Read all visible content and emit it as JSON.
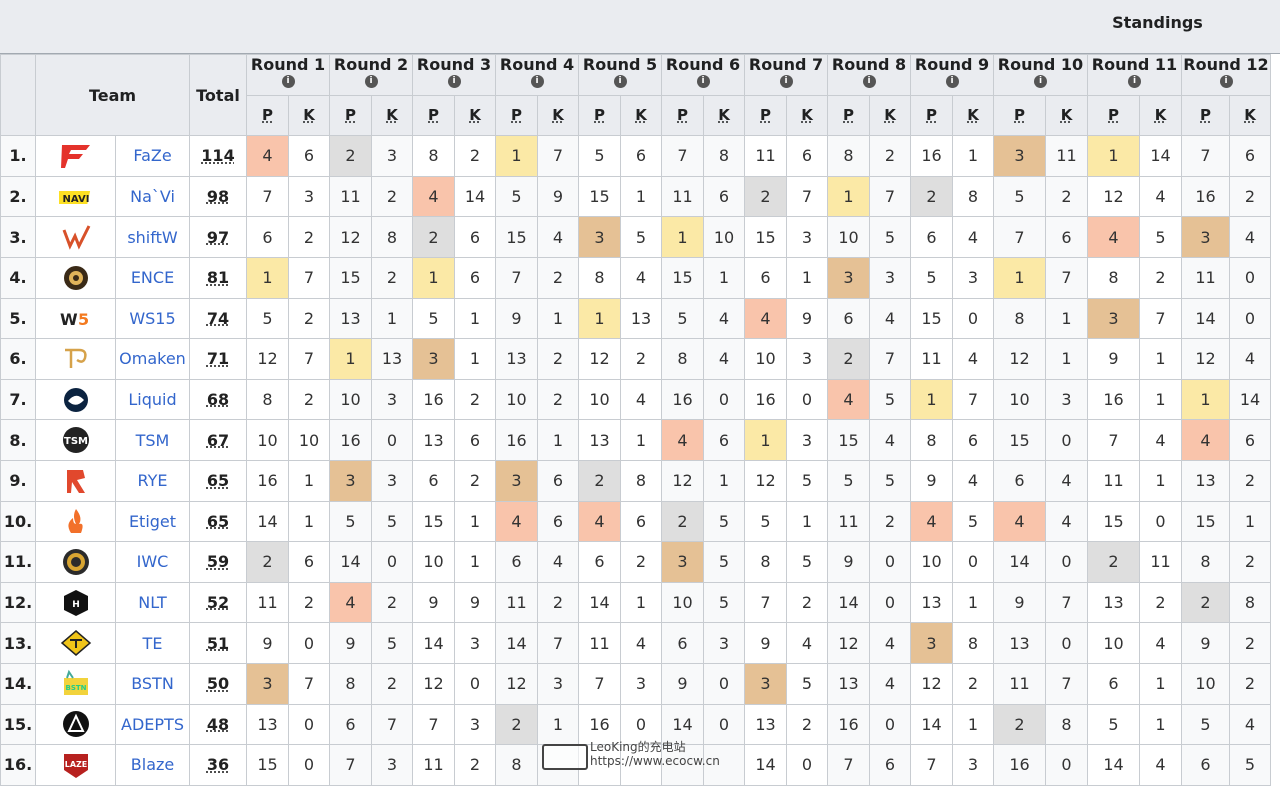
{
  "page": {
    "title": "Standings"
  },
  "headers": {
    "team": "Team",
    "total": "Total",
    "p": "P",
    "k": "K",
    "rounds": [
      "Round 1",
      "Round 2",
      "Round 3",
      "Round 4",
      "Round 5",
      "Round 6",
      "Round 7",
      "Round 8",
      "Round 9",
      "Round 10",
      "Round 11",
      "Round 12"
    ]
  },
  "colors": {
    "gold": "#fbe9a6",
    "silver": "#dedede",
    "bronze": "#e5c195",
    "fourth": "#f9c4ab",
    "link": "#3366cc"
  },
  "rows": [
    {
      "rank": "1.",
      "logo": "faze-logo",
      "team": "FaZe",
      "total": "114",
      "rounds": [
        [
          4,
          6
        ],
        [
          2,
          3
        ],
        [
          8,
          2
        ],
        [
          1,
          7
        ],
        [
          5,
          6
        ],
        [
          7,
          8
        ],
        [
          11,
          6
        ],
        [
          8,
          2
        ],
        [
          16,
          1
        ],
        [
          3,
          11
        ],
        [
          1,
          14
        ],
        [
          7,
          6
        ]
      ]
    },
    {
      "rank": "2.",
      "logo": "navi-logo",
      "team": "Na`Vi",
      "total": "98",
      "rounds": [
        [
          7,
          3
        ],
        [
          11,
          2
        ],
        [
          4,
          14
        ],
        [
          5,
          9
        ],
        [
          15,
          1
        ],
        [
          11,
          6
        ],
        [
          2,
          7
        ],
        [
          1,
          7
        ],
        [
          2,
          8
        ],
        [
          5,
          2
        ],
        [
          12,
          4
        ],
        [
          16,
          2
        ]
      ]
    },
    {
      "rank": "3.",
      "logo": "shiftw-logo",
      "team": "shiftW",
      "total": "97",
      "rounds": [
        [
          6,
          2
        ],
        [
          12,
          8
        ],
        [
          2,
          6
        ],
        [
          15,
          4
        ],
        [
          3,
          5
        ],
        [
          1,
          10
        ],
        [
          15,
          3
        ],
        [
          10,
          5
        ],
        [
          6,
          4
        ],
        [
          7,
          6
        ],
        [
          4,
          5
        ],
        [
          3,
          4
        ]
      ]
    },
    {
      "rank": "4.",
      "logo": "ence-logo",
      "team": "ENCE",
      "total": "81",
      "rounds": [
        [
          1,
          7
        ],
        [
          15,
          2
        ],
        [
          1,
          6
        ],
        [
          7,
          2
        ],
        [
          8,
          4
        ],
        [
          15,
          1
        ],
        [
          6,
          1
        ],
        [
          3,
          3
        ],
        [
          5,
          3
        ],
        [
          1,
          7
        ],
        [
          8,
          2
        ],
        [
          11,
          0
        ]
      ]
    },
    {
      "rank": "5.",
      "logo": "ws15-logo",
      "team": "WS15",
      "total": "74",
      "rounds": [
        [
          5,
          2
        ],
        [
          13,
          1
        ],
        [
          5,
          1
        ],
        [
          9,
          1
        ],
        [
          1,
          13
        ],
        [
          5,
          4
        ],
        [
          4,
          9
        ],
        [
          6,
          4
        ],
        [
          15,
          0
        ],
        [
          8,
          1
        ],
        [
          3,
          7
        ],
        [
          14,
          0
        ]
      ]
    },
    {
      "rank": "6.",
      "logo": "omaken-logo",
      "team": "Omaken",
      "total": "71",
      "rounds": [
        [
          12,
          7
        ],
        [
          1,
          13
        ],
        [
          3,
          1
        ],
        [
          13,
          2
        ],
        [
          12,
          2
        ],
        [
          8,
          4
        ],
        [
          10,
          3
        ],
        [
          2,
          7
        ],
        [
          11,
          4
        ],
        [
          12,
          1
        ],
        [
          9,
          1
        ],
        [
          12,
          4
        ]
      ]
    },
    {
      "rank": "7.",
      "logo": "liquid-logo",
      "team": "Liquid",
      "total": "68",
      "rounds": [
        [
          8,
          2
        ],
        [
          10,
          3
        ],
        [
          16,
          2
        ],
        [
          10,
          2
        ],
        [
          10,
          4
        ],
        [
          16,
          0
        ],
        [
          16,
          0
        ],
        [
          4,
          5
        ],
        [
          1,
          7
        ],
        [
          10,
          3
        ],
        [
          16,
          1
        ],
        [
          1,
          14
        ]
      ]
    },
    {
      "rank": "8.",
      "logo": "tsm-logo",
      "team": "TSM",
      "total": "67",
      "rounds": [
        [
          10,
          10
        ],
        [
          16,
          0
        ],
        [
          13,
          6
        ],
        [
          16,
          1
        ],
        [
          13,
          1
        ],
        [
          4,
          6
        ],
        [
          1,
          3
        ],
        [
          15,
          4
        ],
        [
          8,
          6
        ],
        [
          15,
          0
        ],
        [
          7,
          4
        ],
        [
          4,
          6
        ]
      ]
    },
    {
      "rank": "9.",
      "logo": "rye-logo",
      "team": "RYE",
      "total": "65",
      "rounds": [
        [
          16,
          1
        ],
        [
          3,
          3
        ],
        [
          6,
          2
        ],
        [
          3,
          6
        ],
        [
          2,
          8
        ],
        [
          12,
          1
        ],
        [
          12,
          5
        ],
        [
          5,
          5
        ],
        [
          9,
          4
        ],
        [
          6,
          4
        ],
        [
          11,
          1
        ],
        [
          13,
          2
        ]
      ]
    },
    {
      "rank": "10.",
      "logo": "etiget-logo",
      "team": "Etiget",
      "total": "65",
      "rounds": [
        [
          14,
          1
        ],
        [
          5,
          5
        ],
        [
          15,
          1
        ],
        [
          4,
          6
        ],
        [
          4,
          6
        ],
        [
          2,
          5
        ],
        [
          5,
          1
        ],
        [
          11,
          2
        ],
        [
          4,
          5
        ],
        [
          4,
          4
        ],
        [
          15,
          0
        ],
        [
          15,
          1
        ]
      ]
    },
    {
      "rank": "11.",
      "logo": "iwc-logo",
      "team": "IWC",
      "total": "59",
      "rounds": [
        [
          2,
          6
        ],
        [
          14,
          0
        ],
        [
          10,
          1
        ],
        [
          6,
          4
        ],
        [
          6,
          2
        ],
        [
          3,
          5
        ],
        [
          8,
          5
        ],
        [
          9,
          0
        ],
        [
          10,
          0
        ],
        [
          14,
          0
        ],
        [
          2,
          11
        ],
        [
          8,
          2
        ]
      ]
    },
    {
      "rank": "12.",
      "logo": "nlt-logo",
      "team": "NLT",
      "total": "52",
      "rounds": [
        [
          11,
          2
        ],
        [
          4,
          2
        ],
        [
          9,
          9
        ],
        [
          11,
          2
        ],
        [
          14,
          1
        ],
        [
          10,
          5
        ],
        [
          7,
          2
        ],
        [
          14,
          0
        ],
        [
          13,
          1
        ],
        [
          9,
          7
        ],
        [
          13,
          2
        ],
        [
          2,
          8
        ]
      ]
    },
    {
      "rank": "13.",
      "logo": "te-logo",
      "team": "TE",
      "total": "51",
      "rounds": [
        [
          9,
          0
        ],
        [
          9,
          5
        ],
        [
          14,
          3
        ],
        [
          14,
          7
        ],
        [
          11,
          4
        ],
        [
          6,
          3
        ],
        [
          9,
          4
        ],
        [
          12,
          4
        ],
        [
          3,
          8
        ],
        [
          13,
          0
        ],
        [
          10,
          4
        ],
        [
          9,
          2
        ]
      ]
    },
    {
      "rank": "14.",
      "logo": "bstn-logo",
      "team": "BSTN",
      "total": "50",
      "rounds": [
        [
          3,
          7
        ],
        [
          8,
          2
        ],
        [
          12,
          0
        ],
        [
          12,
          3
        ],
        [
          7,
          3
        ],
        [
          9,
          0
        ],
        [
          3,
          5
        ],
        [
          13,
          4
        ],
        [
          12,
          2
        ],
        [
          11,
          7
        ],
        [
          6,
          1
        ],
        [
          10,
          2
        ]
      ]
    },
    {
      "rank": "15.",
      "logo": "adepts-logo",
      "team": "ADEPTS",
      "total": "48",
      "rounds": [
        [
          13,
          0
        ],
        [
          6,
          7
        ],
        [
          7,
          3
        ],
        [
          2,
          1
        ],
        [
          16,
          0
        ],
        [
          14,
          0
        ],
        [
          13,
          2
        ],
        [
          16,
          0
        ],
        [
          14,
          1
        ],
        [
          2,
          8
        ],
        [
          5,
          1
        ],
        [
          5,
          4
        ]
      ]
    },
    {
      "rank": "16.",
      "logo": "blaze-logo",
      "team": "Blaze",
      "total": "36",
      "rounds": [
        [
          15,
          0
        ],
        [
          7,
          3
        ],
        [
          11,
          2
        ],
        [
          8,
          ""
        ],
        [
          "",
          ""
        ],
        [
          "",
          ""
        ],
        [
          14,
          0
        ],
        [
          7,
          6
        ],
        [
          7,
          3
        ],
        [
          16,
          0
        ],
        [
          14,
          4
        ],
        [
          6,
          5
        ]
      ]
    }
  ],
  "watermark": {
    "line1": "LeoKing的充电站",
    "line2": "https://www.ecocw.cn"
  }
}
